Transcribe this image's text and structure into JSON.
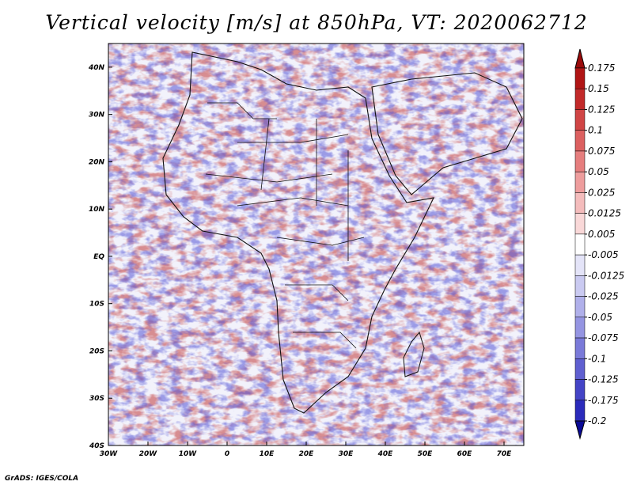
{
  "title": "Vertical velocity [m/s] at 850hPa, VT: 2020062712",
  "footer": "GrADS: IGES/COLA",
  "map": {
    "lon_range": [
      -30,
      75
    ],
    "lat_range": [
      -40,
      45
    ],
    "lon_ticks": [
      "30W",
      "20W",
      "10W",
      "0",
      "10E",
      "20E",
      "30E",
      "40E",
      "50E",
      "60E",
      "70E"
    ],
    "lat_ticks": [
      "40N",
      "30N",
      "20N",
      "10N",
      "EQ",
      "10S",
      "20S",
      "30S",
      "40S"
    ],
    "colors": {
      "positive_strong": "#b2182b",
      "positive_weak": "#f4a5a5",
      "negative_weak": "#b9b9f0",
      "negative_strong": "#2c2cc0",
      "background": "#f2f2fb"
    }
  },
  "colorbar": {
    "labels": [
      "0.175",
      "0.15",
      "0.125",
      "0.1",
      "0.075",
      "0.05",
      "0.025",
      "0.0125",
      "0.005",
      "-0.005",
      "-0.0125",
      "-0.025",
      "-0.05",
      "-0.075",
      "-0.1",
      "-0.125",
      "-0.175",
      "-0.2"
    ],
    "colors": [
      "#b01515",
      "#c22a2a",
      "#d04545",
      "#dc6060",
      "#e67e7e",
      "#ee9d9d",
      "#f4bcbc",
      "#f9d8d8",
      "#ffffff",
      "#e4e4f8",
      "#cacaf1",
      "#b0b0ea",
      "#9595e2",
      "#7a7ad9",
      "#5f5fd0",
      "#4444c6",
      "#2b2bbb",
      "#1414aa"
    ],
    "top_color": "#9a0b0b",
    "bottom_color": "#0a0a96"
  }
}
